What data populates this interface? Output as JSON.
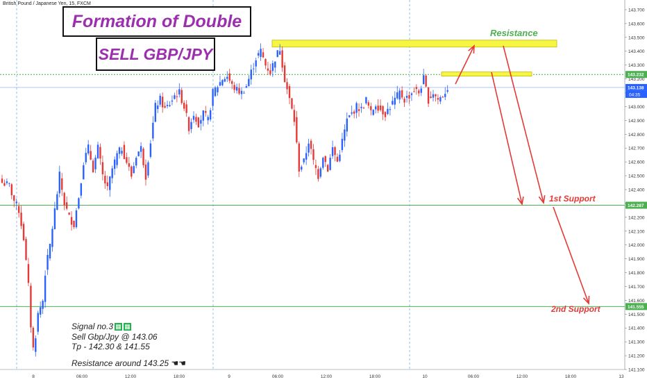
{
  "symbol_label": "British Pound / Japanese Yen, 15, FXCM",
  "title_main": "Formation of Double Top",
  "title_trade": "SELL GBP/JPY",
  "notes": {
    "signal": "Signal no.3",
    "sell": "Sell Gbp/Jpy @ 143.06",
    "tp": "Tp - 142.30 & 141.55",
    "resistance": "Resistance around 143.25"
  },
  "annotations": {
    "resistance": "Resistance",
    "support1": "1st Support",
    "support2": "2nd Support"
  },
  "colors": {
    "bull": "#2962ff",
    "bear": "#e53935",
    "support_line": "#4caf50",
    "resistance_band": "#f5f544",
    "arrow": "#e53935",
    "current_price": "#2962ff",
    "title_text": "#9b2fae",
    "annotation_green": "#4caf50",
    "annotation_red": "#e53935"
  },
  "chart_data": {
    "type": "candlestick",
    "ylim": [
      141.1,
      143.75
    ],
    "y_ticks": [
      141.1,
      141.2,
      141.3,
      141.4,
      141.5,
      141.6,
      141.7,
      141.8,
      141.9,
      142.0,
      142.1,
      142.2,
      142.3,
      142.4,
      142.5,
      142.6,
      142.7,
      142.8,
      142.9,
      143.0,
      143.1,
      143.2,
      143.3,
      143.4,
      143.5,
      143.6,
      143.7
    ],
    "x_ticks": [
      "8",
      "06:00",
      "12:00",
      "18:00",
      "9",
      "06:00",
      "12:00",
      "18:00",
      "10",
      "06:00",
      "12:00",
      "18:00",
      "13"
    ],
    "price_labels": [
      {
        "value": 143.232,
        "text": "143.232",
        "color": "#4caf50"
      },
      {
        "value": 143.138,
        "text": "143.138",
        "color": "#2962ff"
      },
      {
        "value": 142.287,
        "text": "142.287",
        "color": "#4caf50"
      },
      {
        "value": 141.555,
        "text": "141.555",
        "color": "#4caf50"
      }
    ],
    "countdown": "04:35",
    "support_levels": [
      142.287,
      141.555
    ],
    "dotted_level": 143.232,
    "current_price": 143.138,
    "resistance_band": [
      143.43,
      143.48
    ],
    "resistance_small_band": [
      143.22,
      143.25
    ],
    "close_path": [
      [
        0,
        142.45
      ],
      [
        3,
        142.43
      ],
      [
        5,
        142.32
      ],
      [
        7,
        142.25
      ],
      [
        9,
        142.05
      ],
      [
        11,
        141.7
      ],
      [
        12,
        141.42
      ],
      [
        13,
        141.25
      ],
      [
        14,
        141.35
      ],
      [
        15,
        141.5
      ],
      [
        17,
        141.6
      ],
      [
        18,
        141.8
      ],
      [
        20,
        142.0
      ],
      [
        22,
        142.25
      ],
      [
        24,
        142.5
      ],
      [
        26,
        142.3
      ],
      [
        28,
        142.2
      ],
      [
        30,
        142.15
      ],
      [
        32,
        142.35
      ],
      [
        34,
        142.6
      ],
      [
        36,
        142.7
      ],
      [
        38,
        142.55
      ],
      [
        40,
        142.7
      ],
      [
        42,
        142.5
      ],
      [
        44,
        142.4
      ],
      [
        46,
        142.55
      ],
      [
        48,
        142.65
      ],
      [
        50,
        142.7
      ],
      [
        52,
        142.6
      ],
      [
        54,
        142.5
      ],
      [
        56,
        142.65
      ],
      [
        58,
        142.7
      ],
      [
        60,
        142.5
      ],
      [
        62,
        142.75
      ],
      [
        64,
        143.0
      ],
      [
        66,
        143.05
      ],
      [
        68,
        142.98
      ],
      [
        70,
        143.02
      ],
      [
        72,
        143.08
      ],
      [
        74,
        143.1
      ],
      [
        76,
        143.0
      ],
      [
        78,
        142.85
      ],
      [
        80,
        142.95
      ],
      [
        82,
        142.88
      ],
      [
        84,
        142.95
      ],
      [
        86,
        142.9
      ],
      [
        88,
        143.1
      ],
      [
        90,
        143.15
      ],
      [
        92,
        143.2
      ],
      [
        94,
        143.22
      ],
      [
        96,
        143.15
      ],
      [
        98,
        143.12
      ],
      [
        100,
        143.1
      ],
      [
        102,
        143.15
      ],
      [
        104,
        143.25
      ],
      [
        106,
        143.35
      ],
      [
        108,
        143.4
      ],
      [
        110,
        143.3
      ],
      [
        112,
        143.25
      ],
      [
        114,
        143.35
      ],
      [
        116,
        143.42
      ],
      [
        118,
        143.2
      ],
      [
        120,
        143.05
      ],
      [
        122,
        142.9
      ],
      [
        124,
        142.55
      ],
      [
        126,
        142.6
      ],
      [
        128,
        142.75
      ],
      [
        130,
        142.6
      ],
      [
        132,
        142.5
      ],
      [
        134,
        142.65
      ],
      [
        136,
        142.55
      ],
      [
        138,
        142.7
      ],
      [
        140,
        142.6
      ],
      [
        142,
        142.75
      ],
      [
        144,
        142.9
      ],
      [
        146,
        142.95
      ],
      [
        148,
        143.0
      ],
      [
        150,
        142.98
      ],
      [
        152,
        143.05
      ],
      [
        154,
        142.95
      ],
      [
        156,
        143.02
      ],
      [
        158,
        142.98
      ],
      [
        160,
        142.95
      ],
      [
        162,
        143.0
      ],
      [
        164,
        143.05
      ],
      [
        166,
        143.1
      ],
      [
        168,
        143.05
      ],
      [
        170,
        143.08
      ],
      [
        172,
        143.12
      ],
      [
        174,
        143.1
      ],
      [
        176,
        143.2
      ],
      [
        178,
        143.05
      ],
      [
        180,
        143.1
      ],
      [
        182,
        143.05
      ],
      [
        184,
        143.08
      ],
      [
        186,
        143.138
      ]
    ]
  }
}
